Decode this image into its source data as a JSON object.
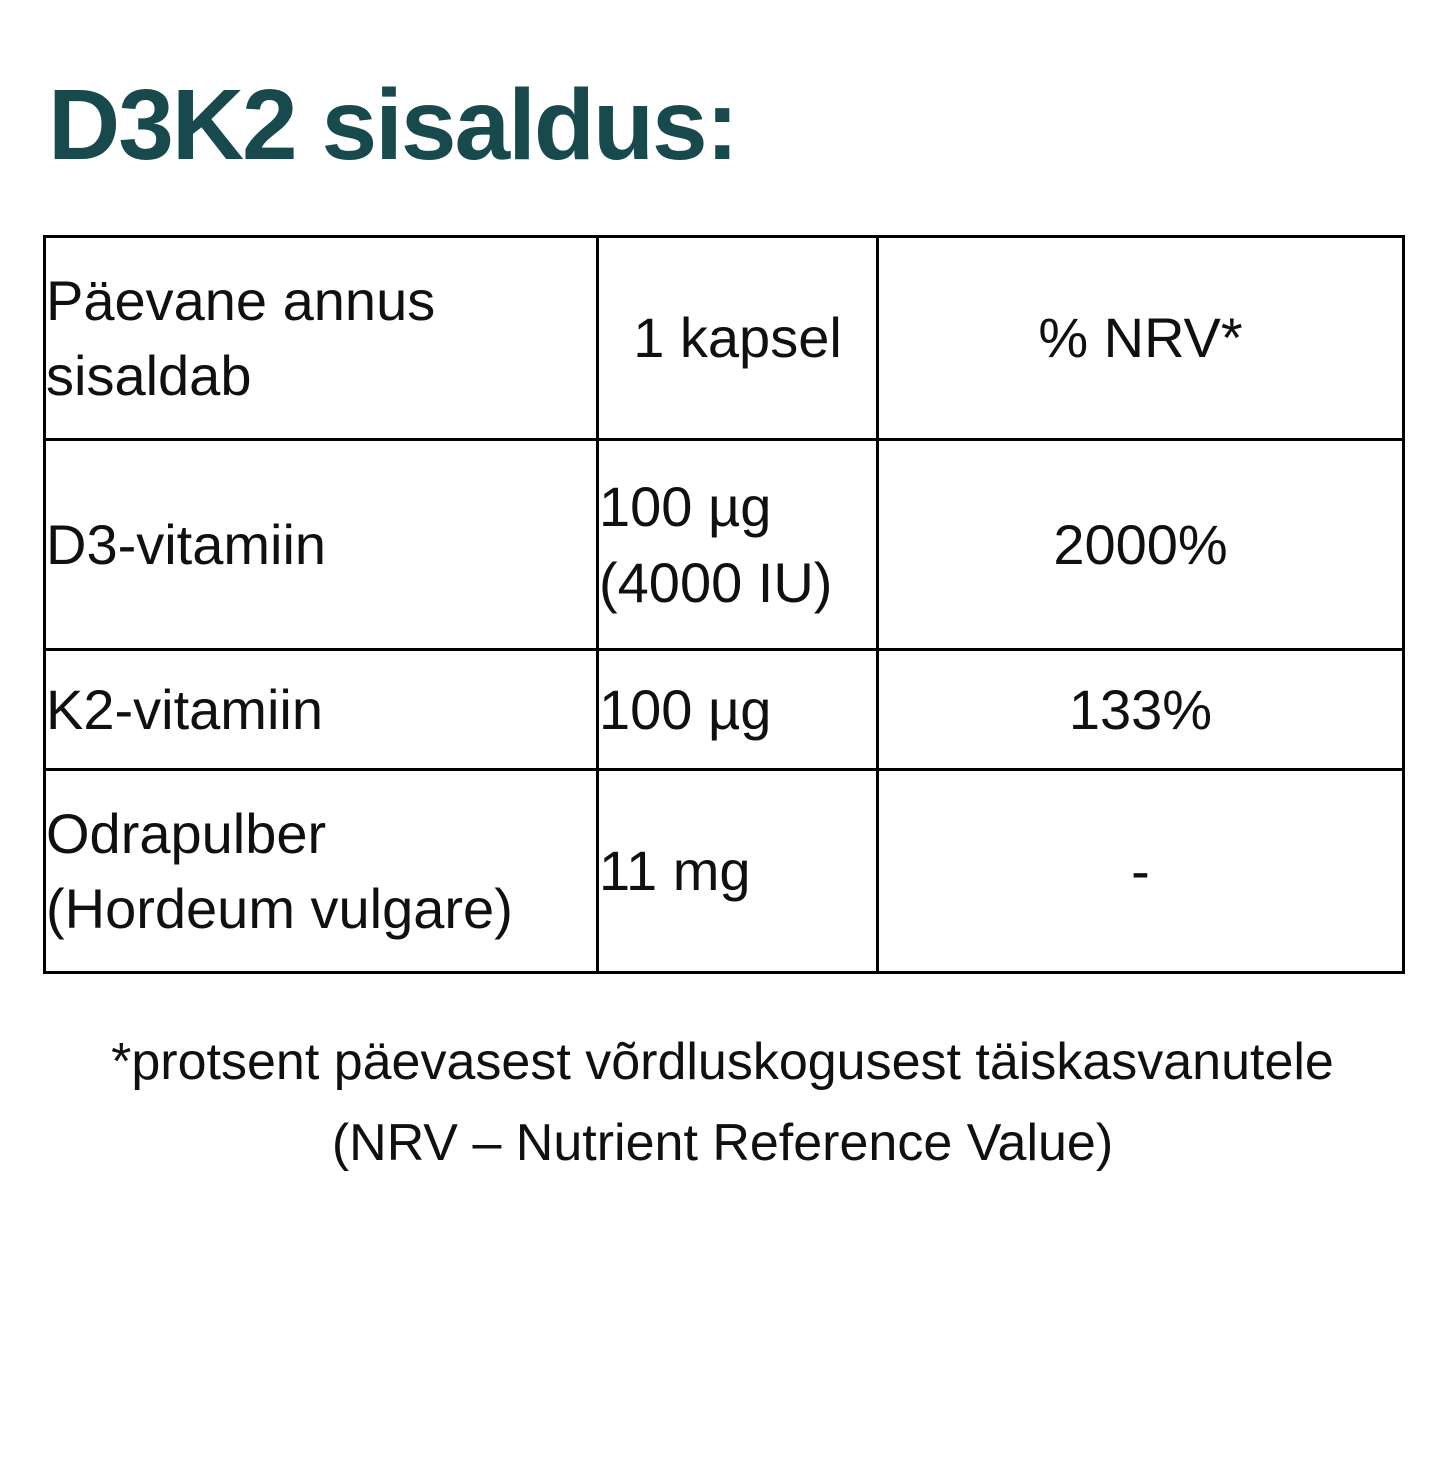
{
  "title": {
    "text": "D3K2 sisaldus:",
    "color": "#17494D"
  },
  "table": {
    "border_color": "#000000",
    "header": {
      "ingredient": "Päevane annus\nsisaldab",
      "amount": "1 kapsel",
      "nrv": "% NRV*"
    },
    "rows": [
      {
        "ingredient": "D3-vitamiin",
        "amount": "100 µg\n(4000 IU)",
        "nrv": "2000%"
      },
      {
        "ingredient": "K2-vitamiin",
        "amount": "100 µg",
        "nrv": "133%"
      },
      {
        "ingredient": "Odrapulber\n(Hordeum vulgare)",
        "amount": "11 mg",
        "nrv": "-"
      }
    ]
  },
  "footnote": {
    "line1": "*protsent päevasest võrdluskogusest täiskasvanutele",
    "line2": "(NRV – Nutrient Reference Value)"
  }
}
